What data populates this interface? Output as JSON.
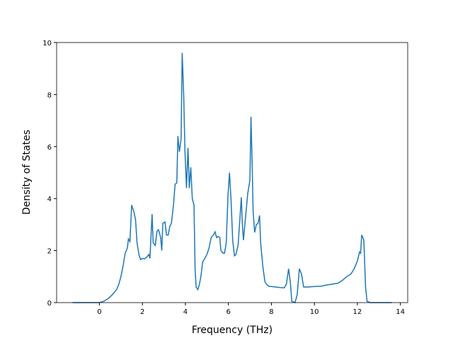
{
  "chart_data": {
    "type": "line",
    "x_label": "Frequency (THz)",
    "y_label": "Density of States",
    "xlim": [
      -1.99,
      14.34
    ],
    "ylim": [
      0,
      10
    ],
    "xticks": [
      0,
      2,
      4,
      6,
      8,
      10,
      12,
      14
    ],
    "yticks": [
      0,
      2,
      4,
      6,
      8,
      10
    ],
    "series": [
      {
        "color": "#1f77b4",
        "x": [
          -1.25,
          0.0,
          0.2,
          0.4,
          0.6,
          0.8,
          0.9,
          1.0,
          1.1,
          1.2,
          1.3,
          1.35,
          1.42,
          1.5,
          1.6,
          1.68,
          1.75,
          1.85,
          1.92,
          2.0,
          2.1,
          2.2,
          2.3,
          2.35,
          2.45,
          2.5,
          2.6,
          2.68,
          2.75,
          2.85,
          2.9,
          2.95,
          3.05,
          3.12,
          3.2,
          3.28,
          3.35,
          3.45,
          3.52,
          3.6,
          3.65,
          3.72,
          3.8,
          3.85,
          3.92,
          3.98,
          4.05,
          4.12,
          4.18,
          4.25,
          4.32,
          4.4,
          4.45,
          4.5,
          4.58,
          4.65,
          4.72,
          4.8,
          4.9,
          5.0,
          5.1,
          5.2,
          5.3,
          5.38,
          5.45,
          5.52,
          5.6,
          5.65,
          5.75,
          5.82,
          5.9,
          5.98,
          6.05,
          6.12,
          6.2,
          6.28,
          6.35,
          6.45,
          6.55,
          6.6,
          6.65,
          6.7,
          6.8,
          6.9,
          7.0,
          7.05,
          7.1,
          7.15,
          7.22,
          7.3,
          7.38,
          7.45,
          7.5,
          7.6,
          7.7,
          7.8,
          7.9,
          8.0,
          8.2,
          8.4,
          8.6,
          8.7,
          8.8,
          8.88,
          8.95,
          9.1,
          9.2,
          9.3,
          9.4,
          9.5,
          9.7,
          10.0,
          10.3,
          10.6,
          10.9,
          11.1,
          11.3,
          11.5,
          11.7,
          11.85,
          12.0,
          12.1,
          12.15,
          12.2,
          12.3,
          12.38,
          12.45,
          12.6,
          13.6
        ],
        "values": [
          0,
          0,
          0.05,
          0.15,
          0.3,
          0.5,
          0.7,
          1.0,
          1.4,
          1.9,
          2.1,
          2.45,
          2.35,
          3.75,
          3.5,
          3.2,
          2.3,
          1.8,
          1.65,
          1.7,
          1.68,
          1.75,
          1.85,
          1.7,
          3.4,
          2.3,
          2.2,
          2.75,
          2.8,
          2.5,
          2.0,
          3.05,
          3.1,
          2.6,
          2.6,
          2.95,
          3.05,
          3.8,
          4.55,
          4.6,
          6.4,
          5.8,
          6.3,
          9.6,
          8.0,
          5.8,
          4.4,
          5.95,
          4.4,
          5.2,
          4.0,
          3.75,
          1.3,
          0.6,
          0.5,
          0.7,
          1.0,
          1.55,
          1.7,
          1.85,
          2.1,
          2.5,
          2.6,
          2.72,
          2.5,
          2.55,
          2.5,
          2.0,
          1.9,
          1.9,
          2.3,
          4.1,
          5.0,
          4.0,
          2.4,
          1.8,
          1.85,
          2.2,
          3.4,
          4.05,
          3.0,
          2.4,
          3.3,
          4.2,
          4.7,
          7.15,
          5.5,
          3.5,
          2.7,
          3.0,
          3.05,
          3.35,
          2.3,
          1.4,
          0.8,
          0.68,
          0.62,
          0.62,
          0.6,
          0.58,
          0.57,
          0.72,
          1.3,
          0.8,
          0.05,
          0,
          0.3,
          1.3,
          1.1,
          0.6,
          0.6,
          0.62,
          0.63,
          0.68,
          0.72,
          0.75,
          0.85,
          1.0,
          1.1,
          1.3,
          1.6,
          1.95,
          1.9,
          2.6,
          2.4,
          0.6,
          0.05,
          0,
          0
        ]
      }
    ]
  }
}
